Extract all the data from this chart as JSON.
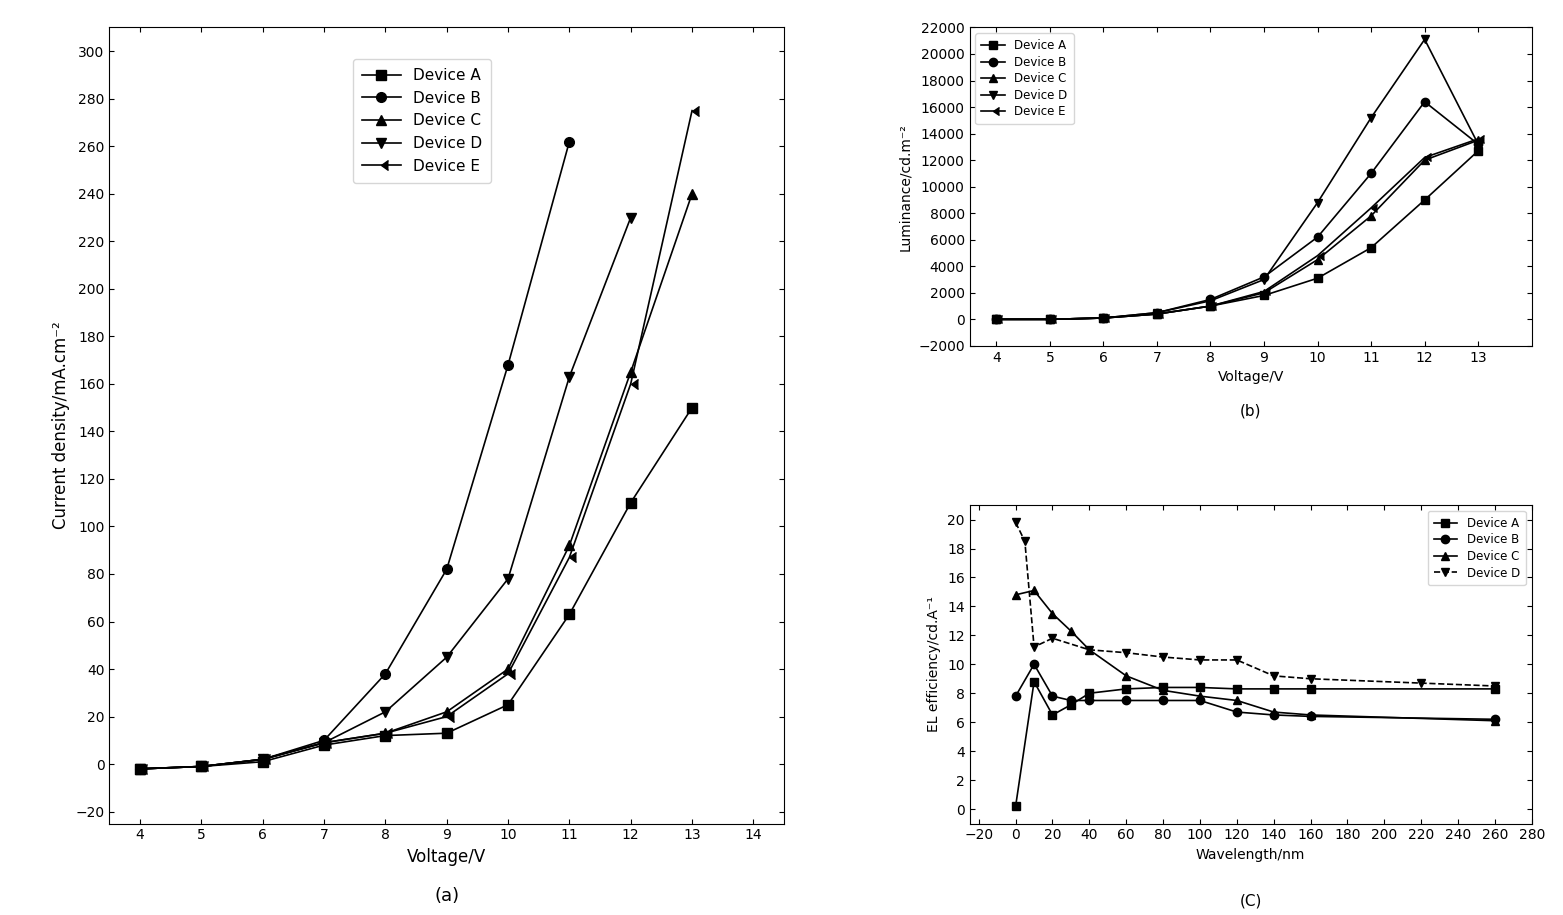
{
  "plot_a": {
    "title": "(a)",
    "xlabel": "Voltage/V",
    "ylabel": "Current density/mA.cm⁻²",
    "xlim": [
      3.5,
      14.5
    ],
    "ylim": [
      -25,
      310
    ],
    "xticks": [
      4,
      5,
      6,
      7,
      8,
      9,
      10,
      11,
      12,
      13,
      14
    ],
    "yticks": [
      -20,
      0,
      20,
      40,
      60,
      80,
      100,
      120,
      140,
      160,
      180,
      200,
      220,
      240,
      260,
      280,
      300
    ],
    "devices": {
      "Device A": {
        "x": [
          4,
          5,
          6,
          7,
          8,
          9,
          10,
          11,
          12,
          13
        ],
        "y": [
          -2,
          -1,
          1,
          8,
          12,
          13,
          25,
          63,
          110,
          150
        ],
        "marker": "s",
        "linestyle": "-"
      },
      "Device B": {
        "x": [
          4,
          5,
          6,
          7,
          8,
          9,
          10,
          11
        ],
        "y": [
          -2,
          -1,
          2,
          10,
          38,
          82,
          168,
          262
        ],
        "marker": "o",
        "linestyle": "-"
      },
      "Device C": {
        "x": [
          4,
          5,
          6,
          7,
          8,
          9,
          10,
          11,
          12,
          13
        ],
        "y": [
          -2,
          -1,
          2,
          9,
          13,
          22,
          40,
          92,
          165,
          240
        ],
        "marker": "^",
        "linestyle": "-"
      },
      "Device D": {
        "x": [
          4,
          5,
          6,
          7,
          8,
          9,
          10,
          11,
          12
        ],
        "y": [
          -2,
          -1,
          2,
          9,
          22,
          45,
          78,
          163,
          230
        ],
        "marker": "v",
        "linestyle": "-"
      },
      "Device E": {
        "x": [
          4,
          5,
          6,
          7,
          8,
          9,
          10,
          11,
          12,
          13
        ],
        "y": [
          -2,
          -1,
          2,
          9,
          13,
          20,
          38,
          87,
          160,
          275
        ],
        "marker": 4,
        "linestyle": "-"
      }
    }
  },
  "plot_b": {
    "title": "(b)",
    "xlabel": "Voltage/V",
    "ylabel": "Luminance/cd.m⁻²",
    "xlim": [
      3.5,
      14
    ],
    "ylim": [
      -2000,
      22000
    ],
    "xticks": [
      4,
      5,
      6,
      7,
      8,
      9,
      10,
      11,
      12,
      13
    ],
    "yticks": [
      -2000,
      0,
      2000,
      4000,
      6000,
      8000,
      10000,
      12000,
      14000,
      16000,
      18000,
      20000,
      22000
    ],
    "devices": {
      "Device A": {
        "x": [
          4,
          5,
          6,
          7,
          8,
          9,
          10,
          11,
          12,
          13
        ],
        "y": [
          0,
          0,
          100,
          400,
          1000,
          1800,
          3100,
          5400,
          9000,
          12700
        ],
        "marker": "s",
        "linestyle": "-"
      },
      "Device B": {
        "x": [
          4,
          5,
          6,
          7,
          8,
          9,
          10,
          11,
          12,
          13
        ],
        "y": [
          0,
          0,
          100,
          500,
          1500,
          3200,
          6200,
          11000,
          16400,
          13200
        ],
        "marker": "o",
        "linestyle": "-"
      },
      "Device C": {
        "x": [
          4,
          5,
          6,
          7,
          8,
          9,
          10,
          11,
          12,
          13
        ],
        "y": [
          0,
          0,
          100,
          400,
          1000,
          2000,
          4500,
          7800,
          12000,
          13500
        ],
        "marker": "^",
        "linestyle": "-"
      },
      "Device D": {
        "x": [
          4,
          5,
          6,
          7,
          8,
          9,
          10,
          11,
          12,
          13
        ],
        "y": [
          0,
          0,
          100,
          500,
          1400,
          3000,
          8800,
          15200,
          21100,
          13200
        ],
        "marker": "v",
        "linestyle": "-"
      },
      "Device E": {
        "x": [
          4,
          5,
          6,
          7,
          8,
          9,
          10,
          11,
          12,
          13
        ],
        "y": [
          0,
          0,
          100,
          400,
          1000,
          2100,
          4800,
          8400,
          12200,
          13600
        ],
        "marker": 4,
        "linestyle": "-"
      }
    }
  },
  "plot_c": {
    "title": "(C)",
    "xlabel": "Wavelength/nm",
    "ylabel": "EL efficiency/cd.A⁻¹",
    "xlim": [
      -25,
      280
    ],
    "ylim": [
      -1,
      21
    ],
    "xticks": [
      -20,
      0,
      20,
      40,
      60,
      80,
      100,
      120,
      140,
      160,
      180,
      200,
      220,
      240,
      260,
      280
    ],
    "yticks": [
      0,
      2,
      4,
      6,
      8,
      10,
      12,
      14,
      16,
      18,
      20
    ],
    "devices": {
      "Device A": {
        "x": [
          0,
          10,
          20,
          30,
          40,
          60,
          80,
          100,
          120,
          140,
          160,
          260
        ],
        "y": [
          0.2,
          8.8,
          6.5,
          7.2,
          8.0,
          8.3,
          8.4,
          8.4,
          8.3,
          8.3,
          8.3,
          8.3
        ],
        "marker": "s",
        "linestyle": "-"
      },
      "Device B": {
        "x": [
          0,
          10,
          20,
          30,
          40,
          60,
          80,
          100,
          120,
          140,
          160,
          260
        ],
        "y": [
          7.8,
          10.0,
          7.8,
          7.5,
          7.5,
          7.5,
          7.5,
          7.5,
          6.7,
          6.5,
          6.4,
          6.2
        ],
        "marker": "o",
        "linestyle": "-"
      },
      "Device C": {
        "x": [
          0,
          10,
          20,
          30,
          40,
          60,
          80,
          100,
          120,
          140,
          160,
          260
        ],
        "y": [
          14.8,
          15.1,
          13.5,
          12.3,
          11.0,
          9.2,
          8.2,
          7.8,
          7.5,
          6.7,
          6.5,
          6.1
        ],
        "marker": "^",
        "linestyle": "-"
      },
      "Device D": {
        "x": [
          0,
          5,
          10,
          20,
          40,
          60,
          80,
          100,
          120,
          140,
          160,
          220,
          260
        ],
        "y": [
          19.8,
          18.5,
          11.2,
          11.8,
          11.0,
          10.8,
          10.5,
          10.3,
          10.3,
          9.2,
          9.0,
          8.7,
          8.5
        ],
        "marker": "v",
        "linestyle": "--"
      }
    }
  },
  "color": "#000000",
  "markersize_a": 7,
  "markersize_bc": 6,
  "linewidth": 1.2
}
